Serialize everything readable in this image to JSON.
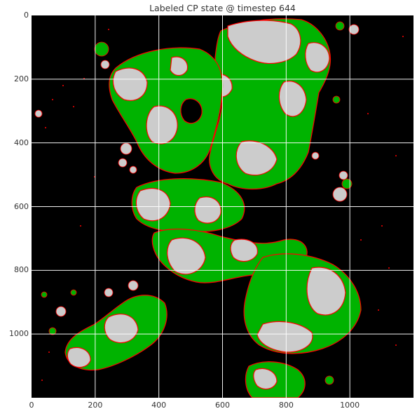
{
  "figure": {
    "title": "Labeled CP state @ timestep 644"
  },
  "axes": {
    "x": {
      "ticks": [
        "0",
        "200",
        "400",
        "600",
        "800",
        "1000"
      ],
      "range": [
        0,
        1200
      ]
    },
    "y": {
      "ticks": [
        "0",
        "200",
        "400",
        "600",
        "800",
        "1000"
      ],
      "range": [
        0,
        1200
      ],
      "inverted": true
    },
    "grid": true,
    "grid_color": "#ffffff"
  },
  "colors": {
    "background": "#000000",
    "green_region": "#00b300",
    "gray_region": "#cccccc",
    "boundary": "#ff0000"
  }
}
